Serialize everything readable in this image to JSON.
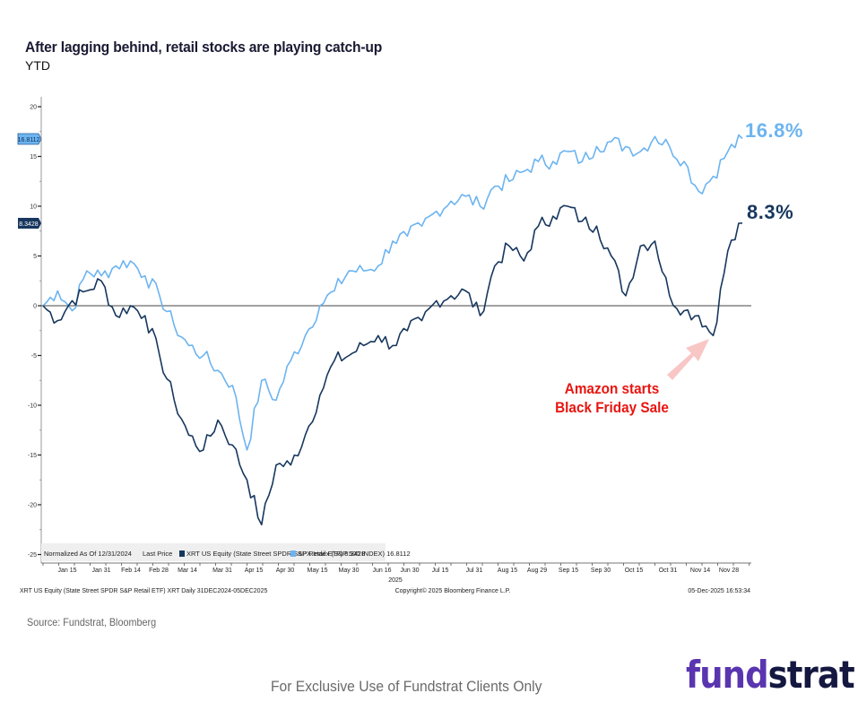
{
  "header": {
    "title": "After lagging behind, retail stocks are playing catch-up",
    "subtitle": "YTD"
  },
  "annotations": {
    "spx_end_label": "16.8%",
    "xrt_end_label": "8.3%",
    "callout_line1": "Amazon starts",
    "callout_line2": "Black Friday Sale",
    "spx_badge": "16.8112",
    "xrt_badge": "8.3428"
  },
  "legend": {
    "normalized": "Normalized As Of 12/31/2024",
    "last_price": "Last Price",
    "xrt": "XRT US Equity (State Street SPDR S&P Retail ETF) 8.3428",
    "spx": "SPX Index (S&P 500 INDEX) 16.8112"
  },
  "footer_bloomberg": {
    "left": "XRT US Equity (State Street SPDR S&P Retail ETF) XRT Daily 31DEC2024-05DEC2025",
    "center": "Copyright© 2025 Bloomberg Finance L.P.",
    "right": "05-Dec-2025 16:53:34",
    "year": "2025"
  },
  "source": "Source: Fundstrat, Bloomberg",
  "disclaimer": "For Exclusive Use of Fundstrat Clients Only",
  "logo": {
    "part1": "fund",
    "part2": "strat"
  },
  "colors": {
    "xrt": "#17375e",
    "spx": "#6cb4f0",
    "callout": "#e8140f",
    "arrow": "#f9c6c6",
    "logo_fund": "#5a35b0",
    "logo_strat": "#14173f"
  },
  "chart_data": {
    "type": "line",
    "title": "After lagging behind, retail stocks are playing catch-up",
    "subtitle": "YTD",
    "xlabel": "2025",
    "ylabel": "",
    "ylim": [
      -25,
      20
    ],
    "yticks": [
      20,
      15,
      10,
      5,
      0,
      -5,
      -10,
      -15,
      -20,
      -25
    ],
    "x_tick_labels": [
      "Jan 15",
      "Jan 31",
      "Feb 14",
      "Feb 28",
      "Mar 14",
      "Mar 31",
      "Apr 15",
      "Apr 30",
      "May 15",
      "May 30",
      "Jun 16",
      "Jun 30",
      "Jul 15",
      "Jul 31",
      "Aug 15",
      "Aug 29",
      "Sep 15",
      "Sep 30",
      "Oct 15",
      "Oct 31",
      "Nov 14",
      "Nov 28"
    ],
    "legend_position": "bottom-inside",
    "grid": false,
    "x": [
      "Dec 31",
      "Jan 8",
      "Jan 15",
      "Jan 23",
      "Jan 31",
      "Feb 7",
      "Feb 14",
      "Feb 21",
      "Feb 28",
      "Mar 7",
      "Mar 14",
      "Mar 21",
      "Mar 31",
      "Apr 4",
      "Apr 8",
      "Apr 9",
      "Apr 15",
      "Apr 22",
      "Apr 30",
      "May 7",
      "May 15",
      "May 22",
      "May 30",
      "Jun 6",
      "Jun 16",
      "Jun 23",
      "Jun 30",
      "Jul 8",
      "Jul 15",
      "Jul 23",
      "Jul 31",
      "Aug 7",
      "Aug 15",
      "Aug 22",
      "Aug 29",
      "Sep 8",
      "Sep 15",
      "Sep 22",
      "Sep 30",
      "Oct 7",
      "Oct 15",
      "Oct 22",
      "Oct 31",
      "Nov 7",
      "Nov 14",
      "Nov 20",
      "Nov 24",
      "Nov 28",
      "Dec 5"
    ],
    "series": [
      {
        "name": "XRT US Equity (State Street SPDR S&P Retail ETF)",
        "last": 8.3428,
        "values": [
          0,
          -1.5,
          0.5,
          1.5,
          2.5,
          -1,
          0,
          -1,
          -5,
          -9.5,
          -13,
          -14.5,
          -11.5,
          -14,
          -17.5,
          -22,
          -16,
          -16,
          -13,
          -9,
          -5.5,
          -5,
          -4,
          -3,
          -4,
          -2.5,
          -1.5,
          0.5,
          1,
          1.5,
          -1,
          4,
          6,
          4.5,
          8,
          9,
          10,
          8.5,
          8,
          5,
          1,
          6,
          6.5,
          1,
          -0.5,
          -1,
          -3,
          5.5,
          8.3
        ]
      },
      {
        "name": "SPX Index (S&P 500 INDEX)",
        "last": 16.8112,
        "values": [
          0,
          1.5,
          -0.5,
          3.5,
          3,
          4,
          4.5,
          3,
          1,
          -2,
          -4,
          -5,
          -6.5,
          -8,
          -14.5,
          -7.5,
          -9.5,
          -5.5,
          -3,
          0,
          1.5,
          3.5,
          3.5,
          4,
          6.5,
          7,
          8,
          9.5,
          10.5,
          11,
          10,
          12,
          12.5,
          13.5,
          14.5,
          14.5,
          15.5,
          14.5,
          16,
          16.5,
          16,
          15.5,
          17,
          16,
          14.5,
          11.5,
          13,
          15.5,
          16.8
        ]
      }
    ]
  }
}
